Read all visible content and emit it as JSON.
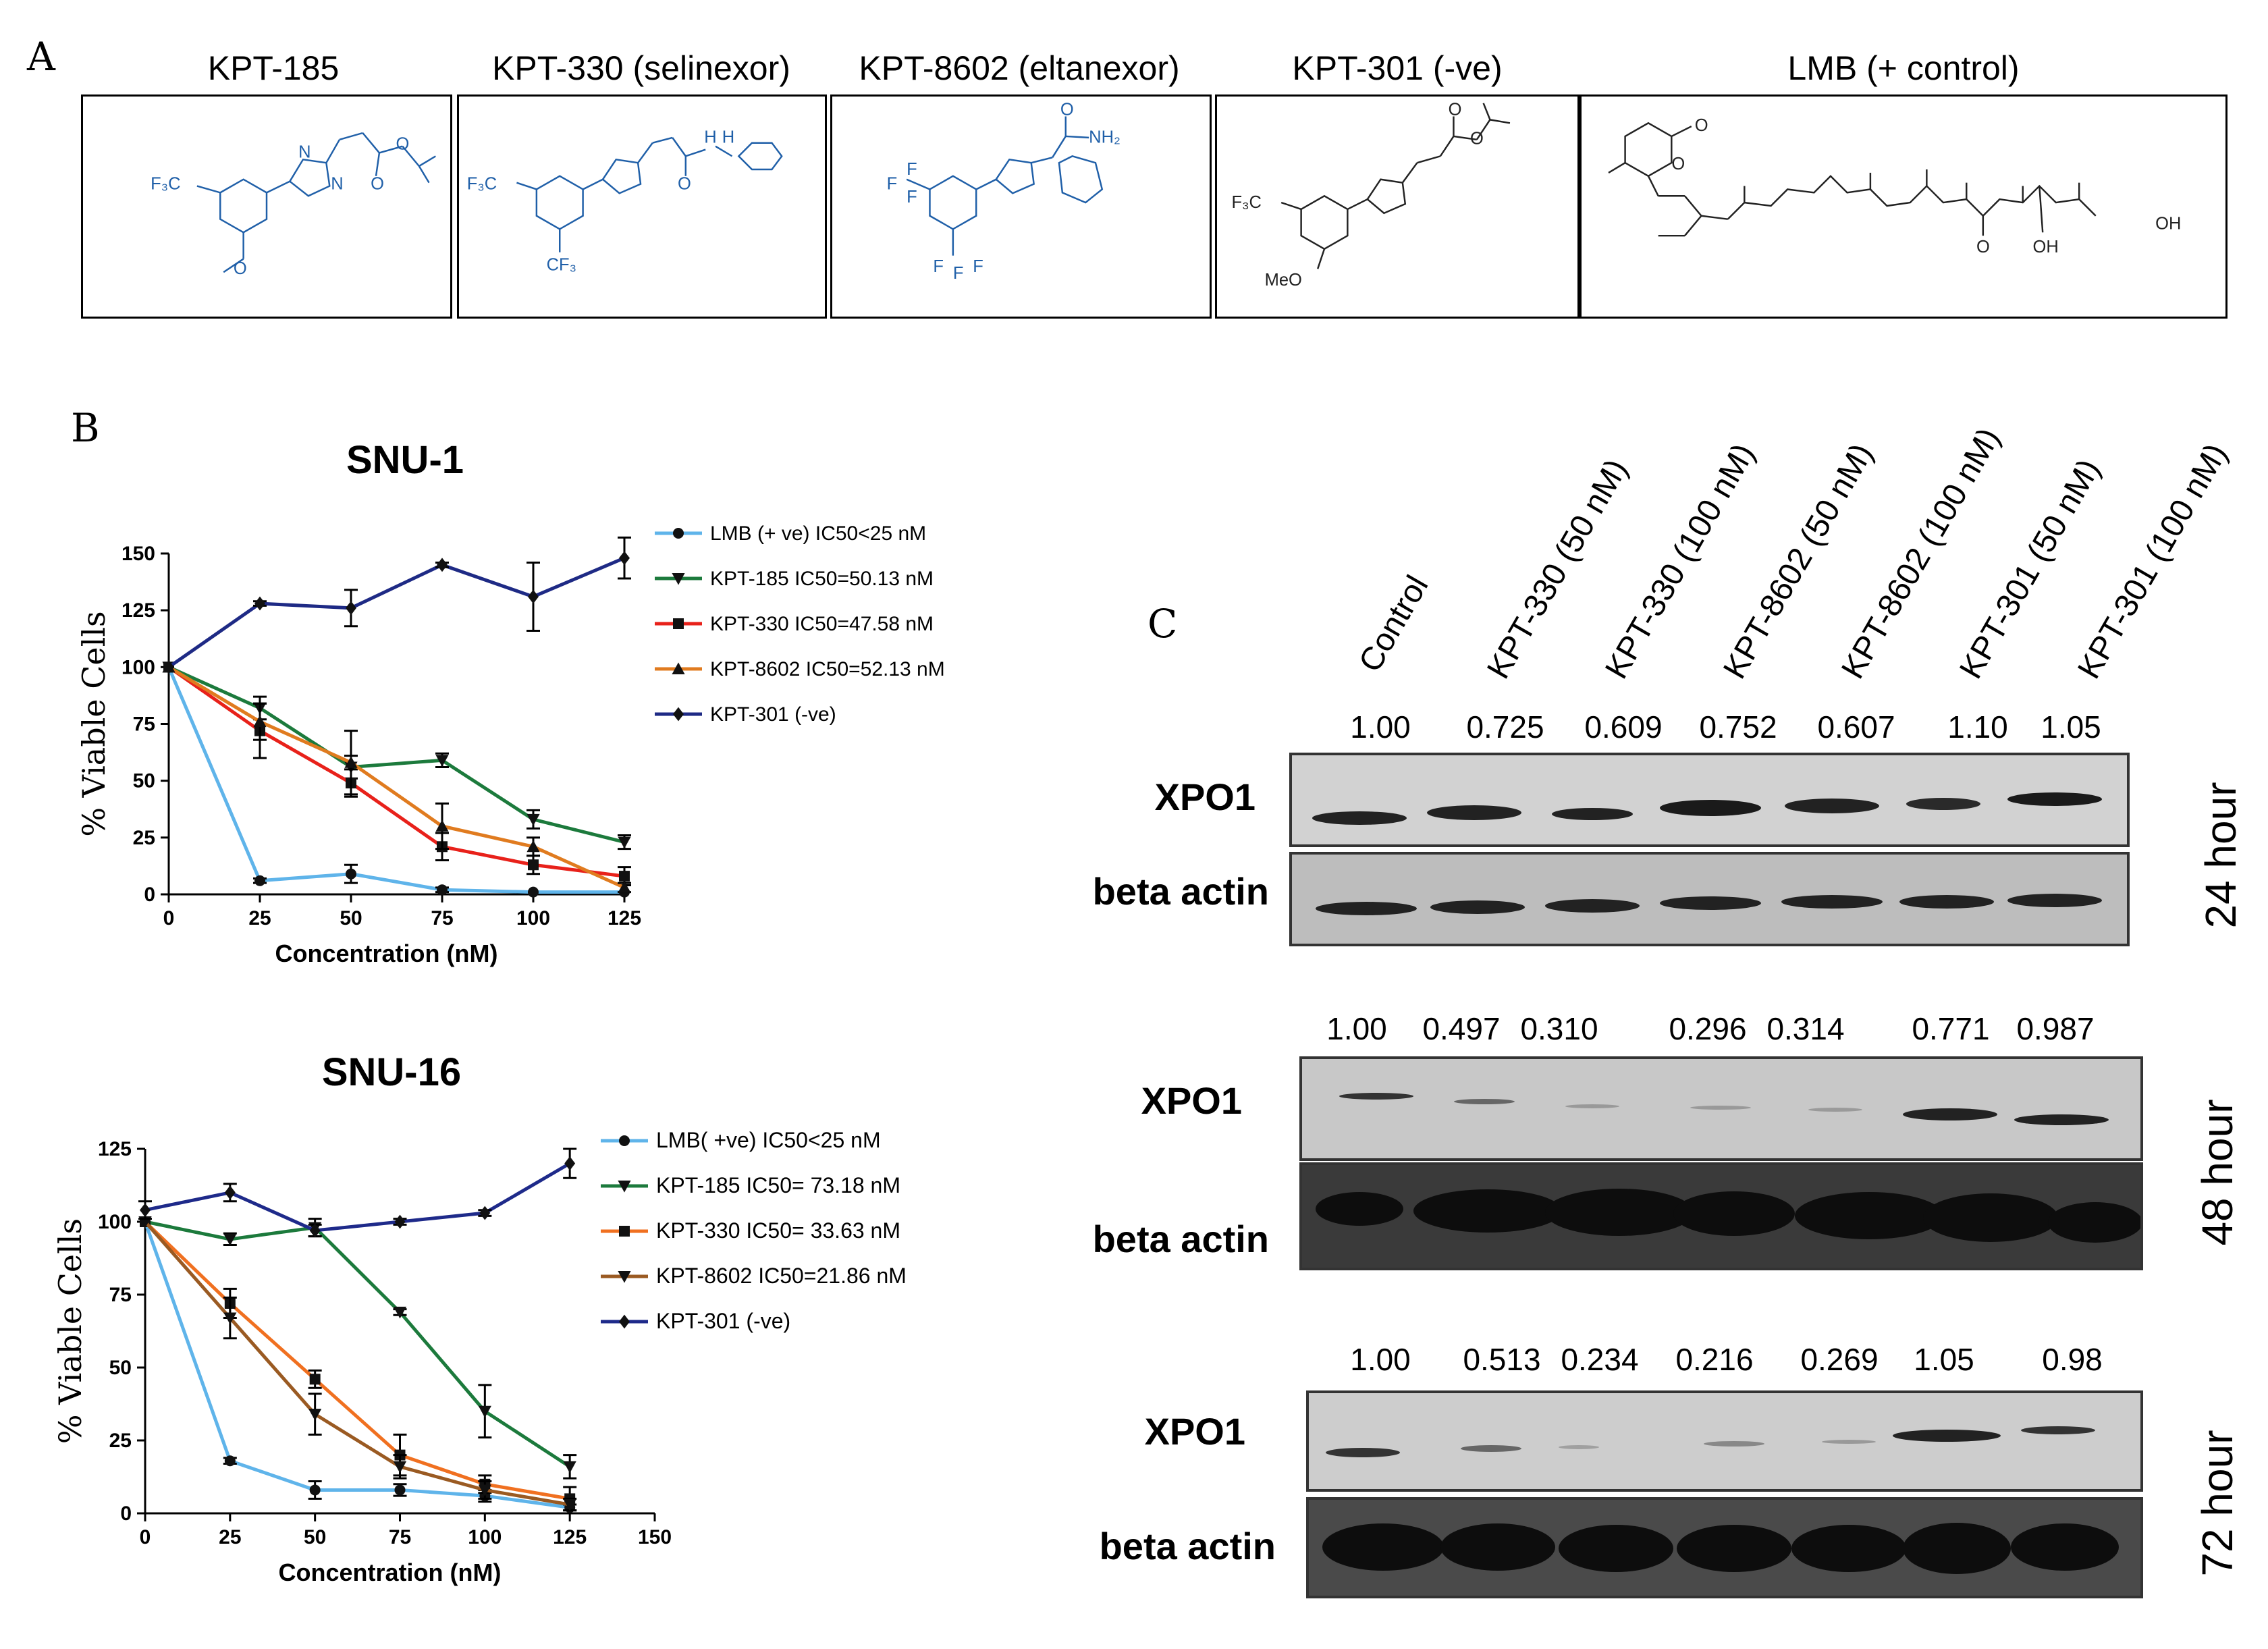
{
  "panel_a": {
    "letter": "A",
    "compounds": [
      {
        "title": "KPT-185"
      },
      {
        "title": "KPT-330 (selinexor)"
      },
      {
        "title": "KPT-8602 (eltanexor)"
      },
      {
        "title": "KPT-301 (-ve)"
      },
      {
        "title": "LMB (+ control)"
      }
    ],
    "atom_labels": {
      "cf3_left": "F₃C",
      "cf3_lower": "CF₃",
      "f": "F",
      "n": "N",
      "o": "O",
      "nh": "H",
      "nh2": "NH₂",
      "meo": "MeO",
      "oh": "OH"
    }
  },
  "panel_b": {
    "letter": "B"
  },
  "panel_c": {
    "letter": "C",
    "lanes": [
      "Control",
      "KPT-330 (50 nM)",
      "KPT-330 (100 nM)",
      "KPT-8602 (50 nM)",
      "KPT-8602 (100 nM)",
      "KPT-301 (50 nM)",
      "KPT-301 (100 nM)"
    ],
    "blots": [
      {
        "time": "24 hour",
        "ratios": [
          "1.00",
          "0.725",
          "0.609",
          "0.752",
          "0.607",
          "1.10",
          "1.05"
        ],
        "top_label": "XPO1",
        "bottom_label": "beta actin"
      },
      {
        "time": "48 hour",
        "ratios": [
          "1.00",
          "0.497",
          "0.310",
          "0.296",
          "0.314",
          "0.771",
          "0.987"
        ],
        "top_label": "XPO1",
        "bottom_label": "beta actin"
      },
      {
        "time": "72 hour",
        "ratios": [
          "1.00",
          "0.513",
          "0.234",
          "0.216",
          "0.269",
          "1.05",
          "0.98"
        ],
        "top_label": "XPO1",
        "bottom_label": "beta actin"
      }
    ]
  },
  "chart_data": [
    {
      "type": "line",
      "title": "SNU-1",
      "xlabel": "Concentration  (nM)",
      "ylabel": "% Viable Cells",
      "xlim": [
        0,
        125
      ],
      "ylim": [
        0,
        150
      ],
      "xticks": [
        0,
        25,
        50,
        75,
        100,
        125
      ],
      "yticks": [
        0,
        25,
        50,
        75,
        100,
        125,
        150
      ],
      "legend_position": "right",
      "x": [
        0,
        25,
        50,
        75,
        100,
        125
      ],
      "series": [
        {
          "name": "LMB (+ ve) IC50<25 nM",
          "color": "#5fb4ea",
          "marker": "circle",
          "values": [
            100,
            6,
            9,
            2,
            1,
            1
          ],
          "err": [
            0,
            1,
            4,
            1,
            0,
            0
          ]
        },
        {
          "name": "KPT-185    IC50=50.13 nM",
          "color": "#1c7a3c",
          "marker": "tri-down",
          "values": [
            100,
            82,
            56,
            59,
            33,
            23
          ],
          "err": [
            0,
            5,
            5,
            3,
            4,
            3
          ]
        },
        {
          "name": "KPT-330    IC50=47.58 nM",
          "color": "#e8211a",
          "marker": "square",
          "values": [
            100,
            72,
            49,
            21,
            13,
            8
          ],
          "err": [
            0,
            12,
            6,
            6,
            4,
            4
          ]
        },
        {
          "name": "KPT-8602  IC50=52.13 nM",
          "color": "#e07b1f",
          "marker": "tri-up",
          "values": [
            100,
            76,
            58,
            30,
            21,
            3
          ],
          "err": [
            0,
            8,
            14,
            10,
            4,
            2
          ]
        },
        {
          "name": "KPT-301 (-ve)",
          "color": "#1e2a85",
          "marker": "diamond",
          "values": [
            100,
            128,
            126,
            145,
            131,
            148
          ],
          "err": [
            0,
            1,
            8,
            1,
            15,
            9
          ]
        }
      ]
    },
    {
      "type": "line",
      "title": "SNU-16",
      "xlabel": "Concentration  (nM)",
      "ylabel": "% Viable Cells",
      "xlim": [
        0,
        150
      ],
      "ylim": [
        0,
        125
      ],
      "xticks": [
        0,
        25,
        50,
        75,
        100,
        125,
        150
      ],
      "yticks": [
        0,
        25,
        50,
        75,
        100,
        125
      ],
      "legend_position": "right",
      "x": [
        0,
        25,
        50,
        75,
        100,
        125
      ],
      "series": [
        {
          "name": "LMB( +ve) IC50<25 nM",
          "color": "#5fb4ea",
          "marker": "circle",
          "values": [
            100,
            18,
            8,
            8,
            6,
            2
          ],
          "err": [
            0,
            1,
            3,
            2,
            2,
            1
          ]
        },
        {
          "name": "KPT-185   IC50= 73.18 nM",
          "color": "#1c7a3c",
          "marker": "tri-down",
          "values": [
            100,
            94,
            98,
            69,
            35,
            16
          ],
          "err": [
            0,
            2,
            3,
            1,
            9,
            4
          ]
        },
        {
          "name": "KPT-330    IC50= 33.63 nM",
          "color": "#f07020",
          "marker": "square",
          "values": [
            100,
            72,
            46,
            20,
            10,
            5
          ],
          "err": [
            0,
            5,
            3,
            7,
            3,
            4
          ]
        },
        {
          "name": "KPT-8602  IC50=21.86 nM",
          "color": "#9a5a22",
          "marker": "tri-down",
          "values": [
            100,
            67,
            34,
            16,
            8,
            3
          ],
          "err": [
            0,
            7,
            7,
            4,
            3,
            2
          ]
        },
        {
          "name": "KPT-301 (-ve)",
          "color": "#1e2a8a",
          "marker": "diamond",
          "values": [
            104,
            110,
            97,
            100,
            103,
            120
          ],
          "err": [
            3,
            3,
            2,
            1,
            1,
            5
          ]
        }
      ]
    }
  ]
}
